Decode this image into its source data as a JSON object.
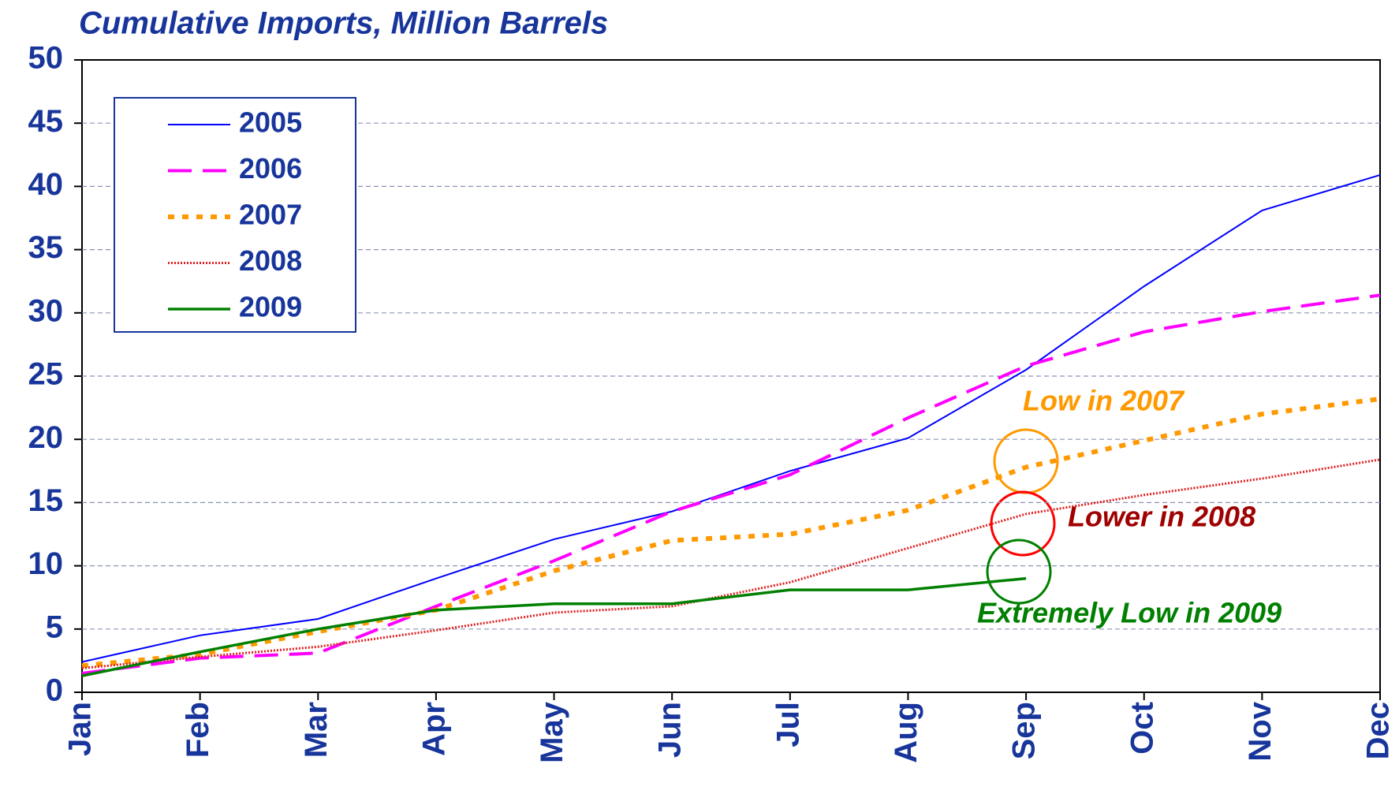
{
  "chart_data": {
    "type": "line",
    "title": "Cumulative Imports, Million Barrels",
    "categories": [
      "Jan",
      "Feb",
      "Mar",
      "Apr",
      "May",
      "Jun",
      "Jul",
      "Aug",
      "Sep",
      "Oct",
      "Nov",
      "Dec"
    ],
    "series": [
      {
        "name": "2005",
        "color": "#0000ff",
        "values": [
          2.4,
          4.5,
          5.8,
          9,
          12.1,
          14.3,
          17.5,
          20.1,
          25.5,
          32.1,
          38.1,
          40.9
        ]
      },
      {
        "name": "2006",
        "color": "#ff00ff",
        "values": [
          1.5,
          2.7,
          3.1,
          6.8,
          10.4,
          14.3,
          17.2,
          21.7,
          25.8,
          28.5,
          30.1,
          31.4
        ]
      },
      {
        "name": "2007",
        "color": "#ff9900",
        "values": [
          2.1,
          3.0,
          4.8,
          6.5,
          9.6,
          12,
          12.5,
          14.4,
          17.8,
          19.9,
          22,
          23.2
        ]
      },
      {
        "name": "2008",
        "color": "#e02020",
        "values": [
          1.9,
          2.8,
          3.6,
          4.9,
          6.3,
          6.8,
          8.7,
          11.4,
          14.1,
          15.6,
          16.9,
          18.4
        ]
      },
      {
        "name": "2009",
        "color": "#008000",
        "values": [
          1.3,
          3.2,
          5,
          6.5,
          7,
          7,
          8.1,
          8.1,
          9,
          null,
          null,
          null
        ]
      }
    ],
    "ylim": [
      0,
      50
    ],
    "yticks": [
      0,
      5,
      10,
      15,
      20,
      25,
      30,
      35,
      40,
      45,
      50
    ],
    "grid": true,
    "legend": "upper left",
    "annotations": [
      {
        "text": "Low in 2007",
        "color": "#ff9900"
      },
      {
        "text": "Lower in 2008",
        "color": "#a00000"
      },
      {
        "text": "Extremely Low in 2009",
        "color": "#008000"
      }
    ]
  }
}
